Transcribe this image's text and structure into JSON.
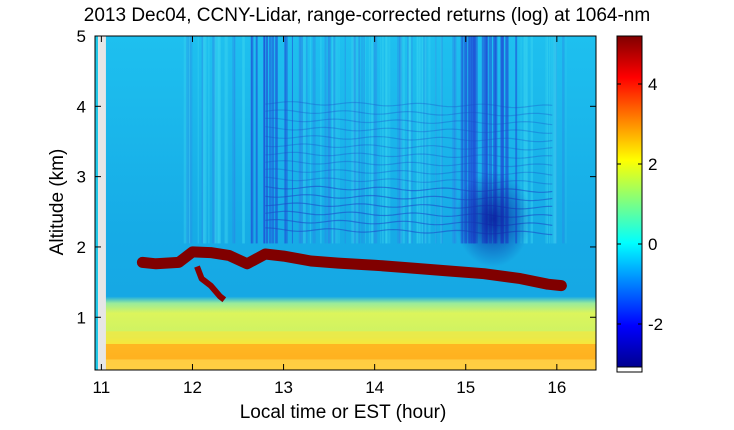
{
  "chart_data": {
    "type": "heatmap",
    "title": "2013 Dec04, CCNY-Lidar, range-corrected returns (log) at 1064-nm",
    "xlabel": "Local time or EST (hour)",
    "ylabel": "Altitude (km)",
    "xlim": [
      10.93,
      16.43
    ],
    "ylim": [
      0.25,
      5.0
    ],
    "xticks": [
      11,
      12,
      13,
      14,
      15,
      16
    ],
    "yticks": [
      1,
      2,
      3,
      4,
      5
    ],
    "colorbar": {
      "range": [
        -3.2,
        5.2
      ],
      "ticks": [
        -2,
        0,
        2,
        4
      ],
      "colormap": "jet"
    },
    "features": {
      "data_gap": [
        10.93,
        11.05
      ],
      "boundary_layer_top_km": [
        [
          11.45,
          1.78
        ],
        [
          11.6,
          1.76
        ],
        [
          11.85,
          1.78
        ],
        [
          12.0,
          1.93
        ],
        [
          12.2,
          1.92
        ],
        [
          12.4,
          1.88
        ],
        [
          12.6,
          1.76
        ],
        [
          12.8,
          1.9
        ],
        [
          13.0,
          1.87
        ],
        [
          13.3,
          1.8
        ],
        [
          13.6,
          1.77
        ],
        [
          14.0,
          1.74
        ],
        [
          14.4,
          1.7
        ],
        [
          14.8,
          1.66
        ],
        [
          15.2,
          1.62
        ],
        [
          15.6,
          1.55
        ],
        [
          15.9,
          1.47
        ],
        [
          16.05,
          1.45
        ]
      ]
    },
    "colors": {
      "upper_atmosphere": "#17b7eb",
      "boundary_layer": "#c8f06a",
      "near_surface": "#ffb020",
      "cloud_layer": "#800000"
    }
  }
}
